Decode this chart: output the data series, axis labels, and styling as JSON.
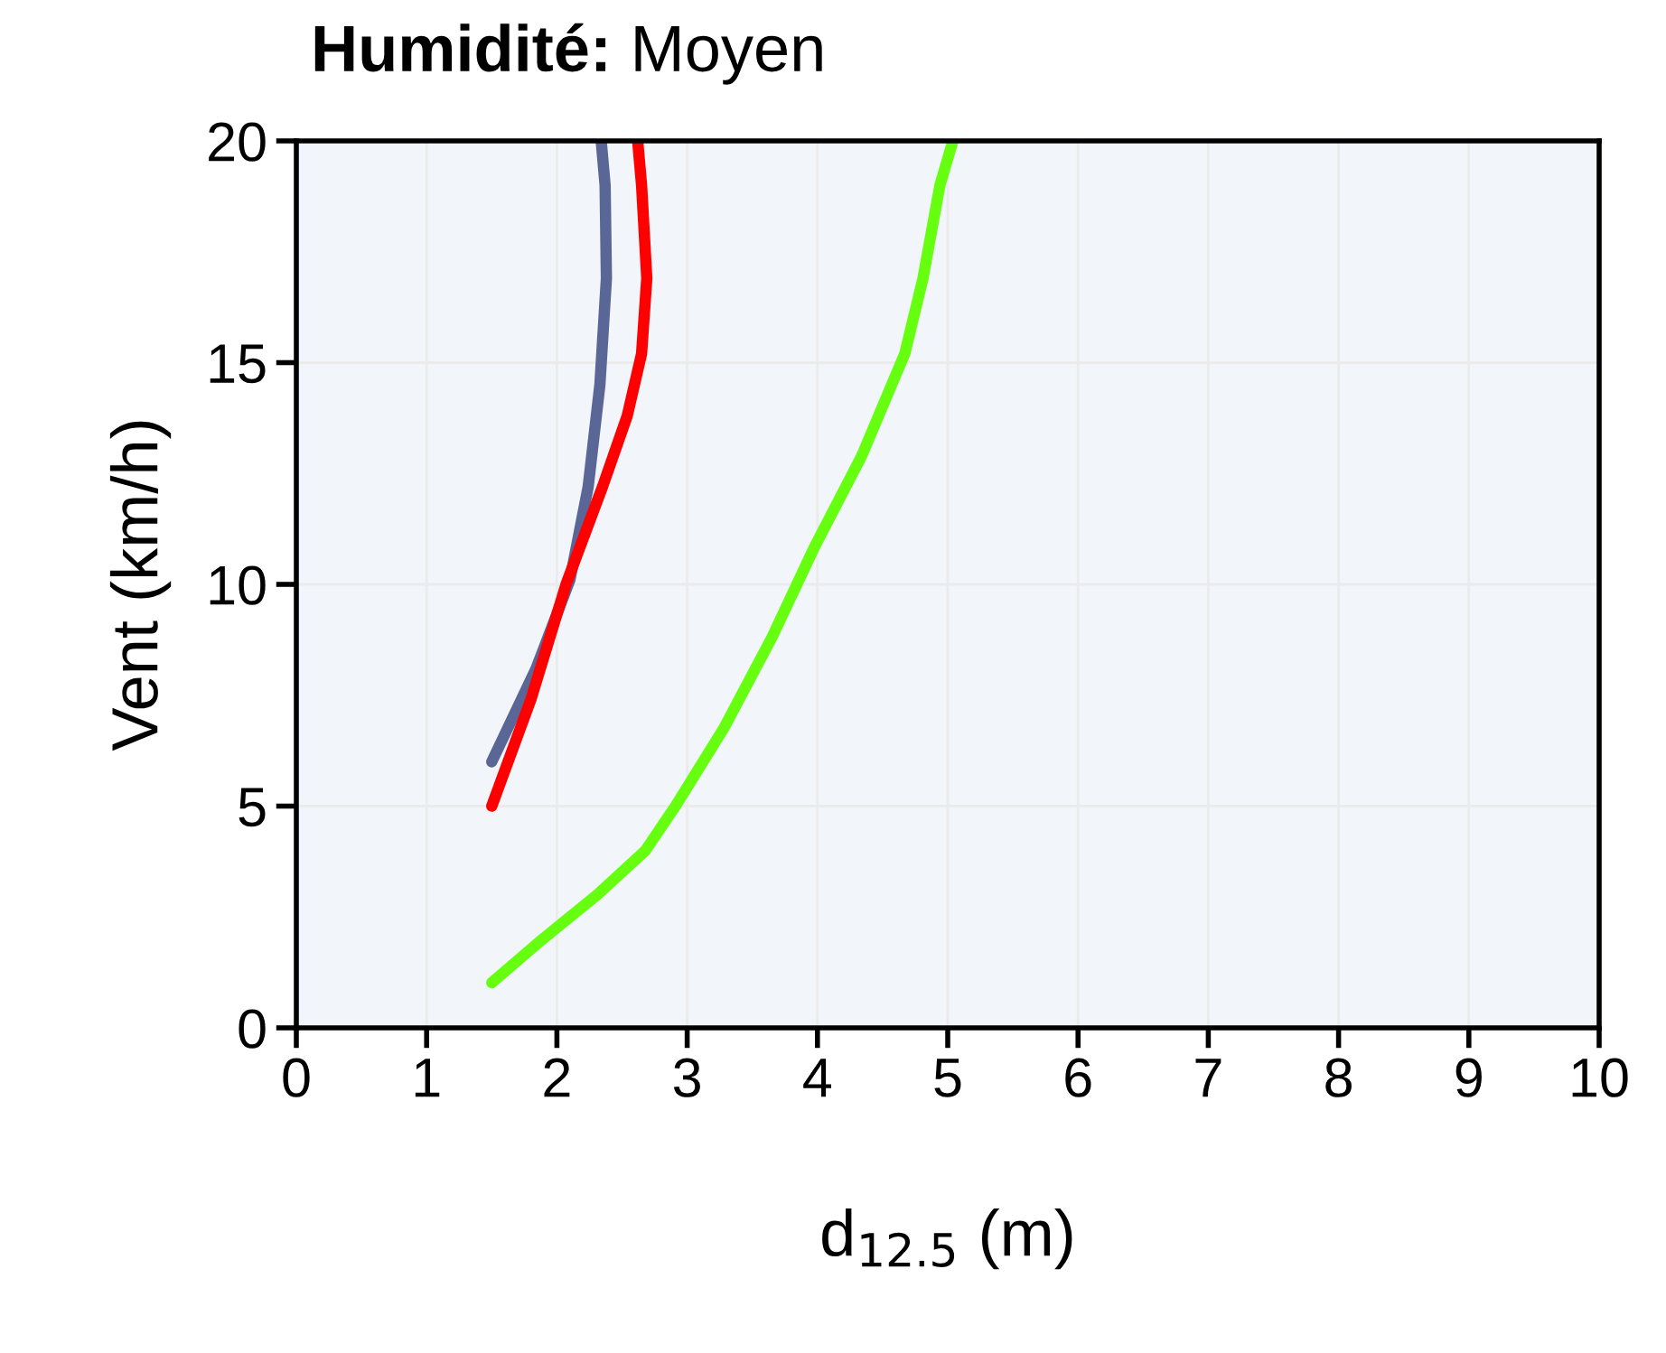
{
  "chart_data": {
    "type": "line",
    "title": "Humidité: Moyen",
    "xlabel": "d$_{12.5}$ (m)",
    "ylabel": "Vent (km/h)",
    "xlim": [
      0,
      10
    ],
    "xticks": [
      0,
      1,
      2,
      3,
      4,
      5,
      6,
      7,
      8,
      9,
      10
    ],
    "ylim": [
      0,
      20
    ],
    "yticks": [
      0,
      5,
      10,
      15,
      20
    ],
    "grid": true,
    "marker": "none",
    "line_style": "solid",
    "series": [
      {
        "color": "#5a6696",
        "x": [
          1.5,
          1.84,
          2.1,
          2.24,
          2.33,
          2.38,
          2.37,
          2.34
        ],
        "values": [
          6,
          8.1,
          10.1,
          12.2,
          14.5,
          16.9,
          19.0,
          20
        ]
      },
      {
        "color": "#ff0000",
        "x": [
          1.5,
          1.8,
          2.07,
          2.35,
          2.54,
          2.65,
          2.69,
          2.65,
          2.62
        ],
        "values": [
          5,
          7.4,
          10.0,
          12.2,
          13.8,
          15.2,
          16.9,
          19.0,
          20
        ]
      },
      {
        "color": "#66ff10",
        "x": [
          1.5,
          1.89,
          2.31,
          2.68,
          2.91,
          3.28,
          3.65,
          3.97,
          4.34,
          4.67,
          4.81,
          4.94,
          5.04
        ],
        "values": [
          1.02,
          2.0,
          3.0,
          4.0,
          5.0,
          6.75,
          8.8,
          10.8,
          12.9,
          15.2,
          16.9,
          19.0,
          20
        ]
      }
    ]
  }
}
